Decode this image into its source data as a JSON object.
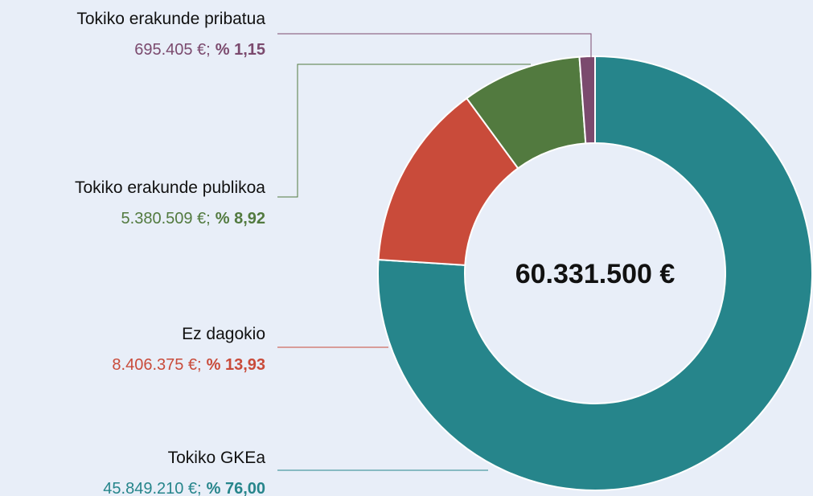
{
  "chart_data": {
    "type": "pie",
    "donut": true,
    "categories": [
      "Tokiko GKEa",
      "Ez dagokio",
      "Tokiko erakunde publikoa",
      "Tokiko erakunde pribatua"
    ],
    "values": [
      76.0,
      13.93,
      8.92,
      1.15
    ],
    "value_labels": [
      "% 76,00",
      "% 13,93",
      "% 8,92",
      "% 1,15"
    ],
    "amounts": [
      45849210,
      8406375,
      5380509,
      695405
    ],
    "amount_labels": [
      "45.849.210 €;",
      "8.406.375 €;",
      "5.380.509 €;",
      "695.405 €;"
    ],
    "colors": [
      "#26858b",
      "#c94b3a",
      "#527a3f",
      "#7b4a6e"
    ],
    "total": 60331500,
    "total_label": "60.331.500 €"
  }
}
